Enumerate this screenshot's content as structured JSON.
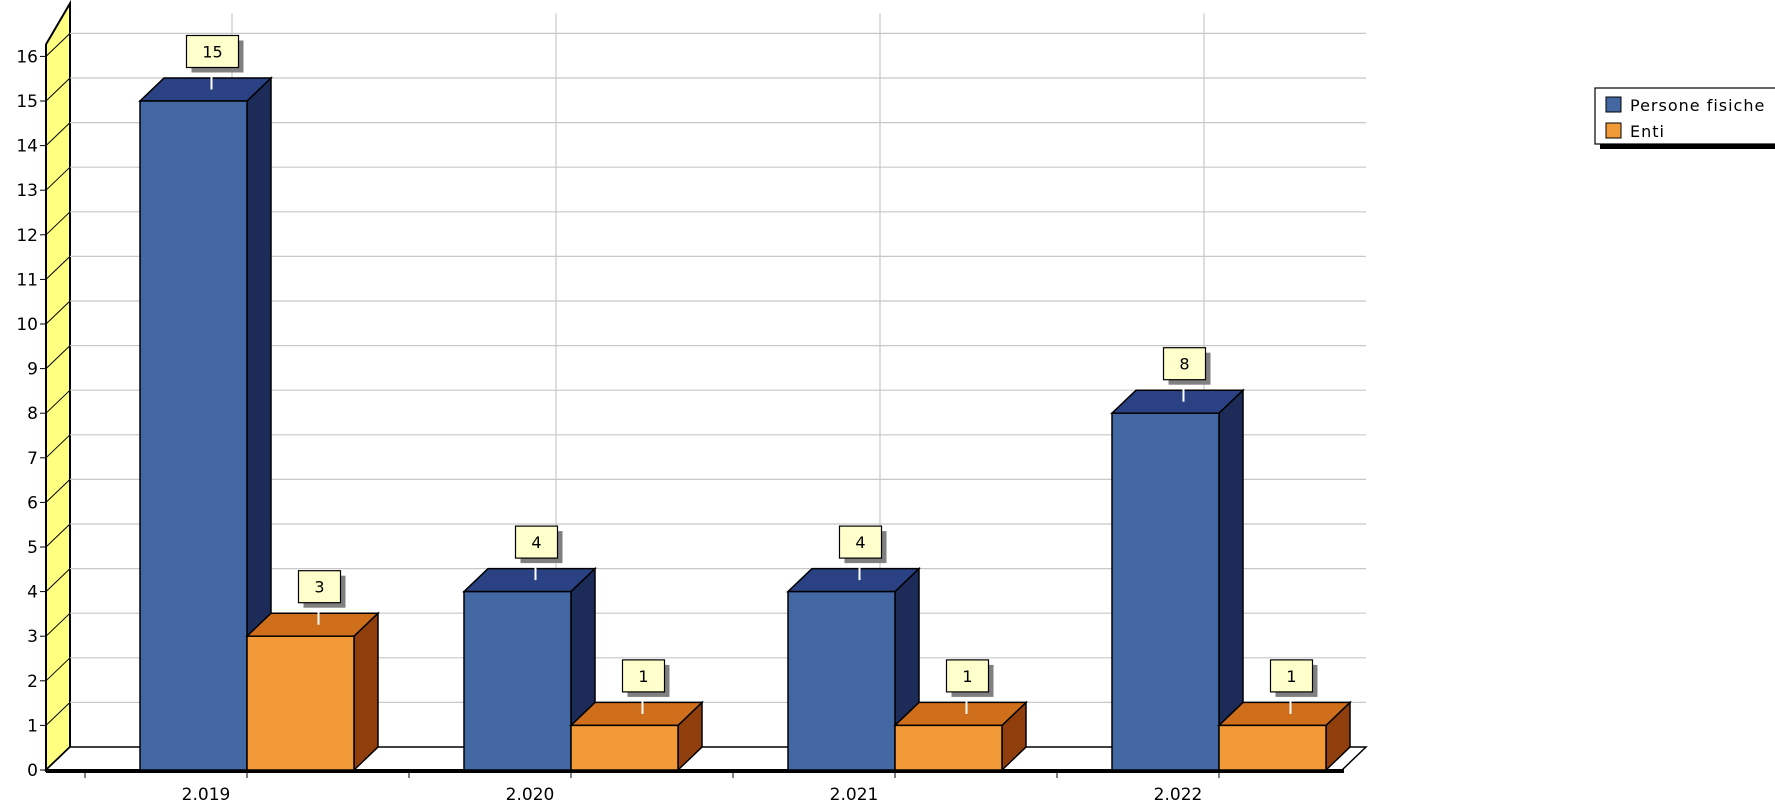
{
  "chart_data": {
    "type": "bar",
    "categories": [
      "2.019",
      "2.020",
      "2.021",
      "2.022"
    ],
    "series": [
      {
        "name": "Persone fisiche",
        "values": [
          15,
          4,
          4,
          8
        ],
        "color": "#4267a2",
        "side_color": "#1d2b59",
        "top_color": "#2a4283"
      },
      {
        "name": "Enti",
        "values": [
          3,
          1,
          1,
          1
        ],
        "color": "#f29a38",
        "side_color": "#8f3e0c",
        "top_color": "#cf6f1c"
      }
    ],
    "yticks": [
      "0",
      "1",
      "2",
      "3",
      "4",
      "5",
      "6",
      "7",
      "8",
      "9",
      "10",
      "11",
      "12",
      "13",
      "14",
      "15",
      "16"
    ],
    "ylim": [
      0,
      16
    ],
    "grid": true,
    "legend_position": "top-right",
    "wall_color": "#ffff80",
    "label_box_color": "#ffffcc"
  }
}
